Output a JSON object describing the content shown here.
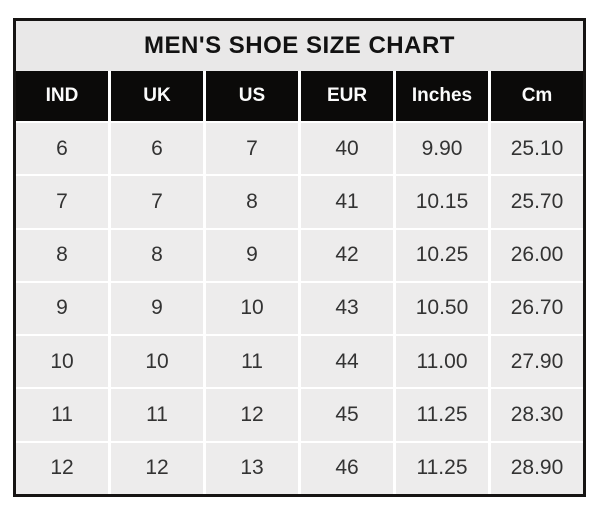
{
  "table": {
    "title": "MEN'S SHOE SIZE CHART",
    "headers": [
      "IND",
      "UK",
      "US",
      "EUR",
      "Inches",
      "Cm"
    ],
    "rows": [
      [
        "6",
        "6",
        "7",
        "40",
        "9.90",
        "25.10"
      ],
      [
        "7",
        "7",
        "8",
        "41",
        "10.15",
        "25.70"
      ],
      [
        "8",
        "8",
        "9",
        "42",
        "10.25",
        "26.00"
      ],
      [
        "9",
        "9",
        "10",
        "43",
        "10.50",
        "26.70"
      ],
      [
        "10",
        "10",
        "11",
        "44",
        "11.00",
        "27.90"
      ],
      [
        "11",
        "11",
        "12",
        "45",
        "11.25",
        "28.30"
      ],
      [
        "12",
        "12",
        "13",
        "46",
        "11.25",
        "28.90"
      ]
    ],
    "colors": {
      "outer_border": "#161413",
      "title_bg": "#e9e8e8",
      "title_text": "#121212",
      "header_bg": "#0b0a09",
      "header_text": "#fbfbfb",
      "cell_bg": "#edecec",
      "cell_text": "#333333",
      "gridline": "#ffffff",
      "page_bg": "#ffffff"
    }
  },
  "chart_data": {
    "type": "table",
    "title": "MEN'S SHOE SIZE CHART",
    "columns": [
      "IND",
      "UK",
      "US",
      "EUR",
      "Inches",
      "Cm"
    ],
    "rows": [
      [
        6,
        6,
        7,
        40,
        9.9,
        25.1
      ],
      [
        7,
        7,
        8,
        41,
        10.15,
        25.7
      ],
      [
        8,
        8,
        9,
        42,
        10.25,
        26.0
      ],
      [
        9,
        9,
        10,
        43,
        10.5,
        26.7
      ],
      [
        10,
        10,
        11,
        44,
        11.0,
        27.9
      ],
      [
        11,
        11,
        12,
        45,
        11.25,
        28.3
      ],
      [
        12,
        12,
        13,
        46,
        11.25,
        28.9
      ]
    ]
  }
}
